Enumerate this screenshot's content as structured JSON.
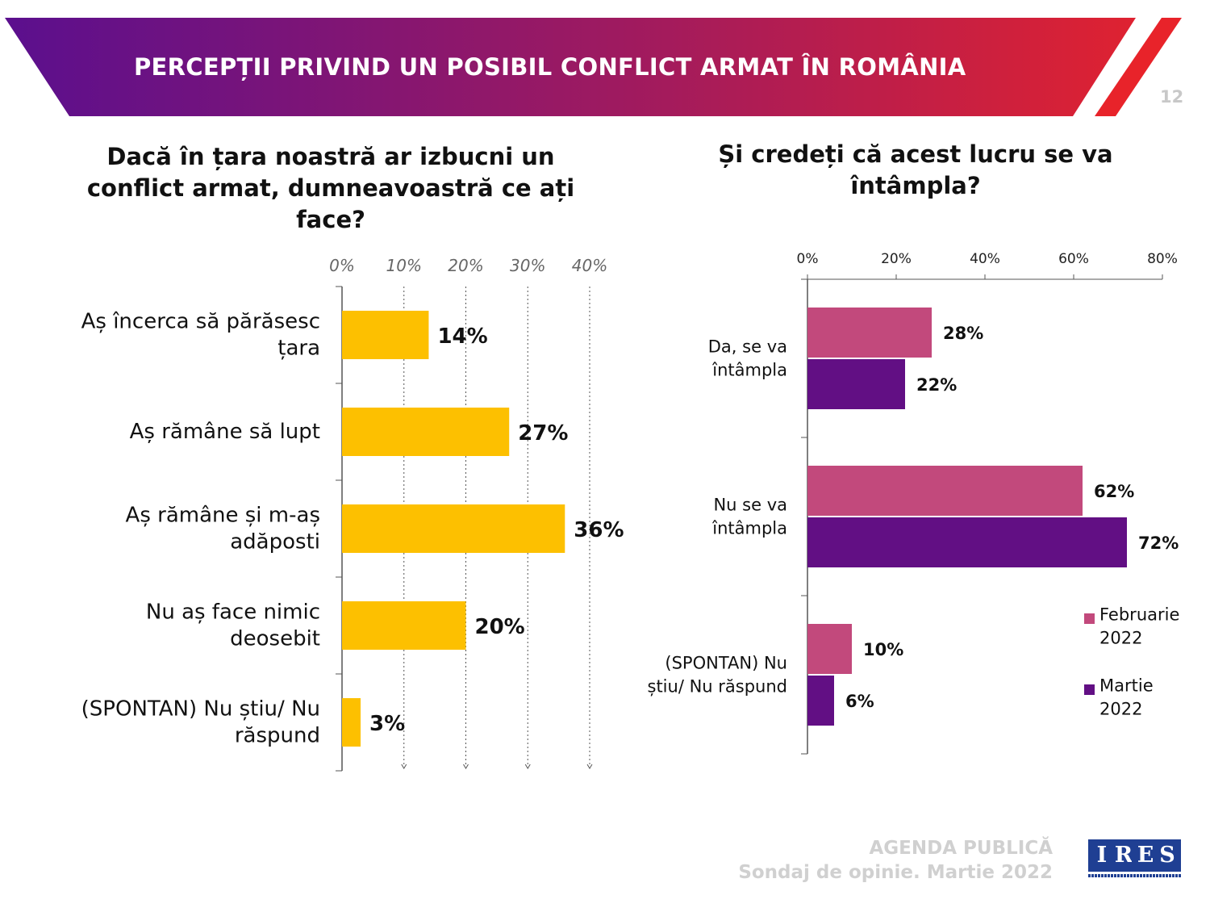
{
  "header": {
    "title": "PERCEPȚII PRIVIND UN POSIBIL CONFLICT ARMAT ÎN ROMÂNIA",
    "page_number": "12"
  },
  "colors": {
    "banner_start": "#5b0f8e",
    "banner_end": "#e8232a",
    "bar_yellow": "#fdc000",
    "series_feb": "#c2497c",
    "series_mar": "#620f84"
  },
  "footer": {
    "line1": "AGENDA PUBLICĂ",
    "line2": "Sondaj de opinie. Martie 2022"
  },
  "logo": {
    "letters": [
      "I",
      "R",
      "E",
      "S"
    ]
  },
  "chart_data": [
    {
      "type": "bar",
      "orientation": "horizontal",
      "title": "Dacă în țara noastră ar izbucni un conflict armat, dumneavoastră ce ați face?",
      "categories": [
        [
          "Aș încerca să părăsesc",
          "țara"
        ],
        [
          "Aș rămâne să lupt"
        ],
        [
          "Aș rămâne și m-aș",
          "adăposti"
        ],
        [
          "Nu aș face nimic",
          "deosebit"
        ],
        [
          "(SPONTAN) Nu știu/ Nu",
          "răspund"
        ]
      ],
      "values": [
        14,
        27,
        36,
        20,
        3
      ],
      "value_labels": [
        "14%",
        "27%",
        "36%",
        "20%",
        "3%"
      ],
      "xlim": [
        0,
        40
      ],
      "xticks": [
        0,
        10,
        20,
        30,
        40
      ],
      "xtick_labels": [
        "0%",
        "10%",
        "20%",
        "30%",
        "40%"
      ],
      "grid": true
    },
    {
      "type": "bar",
      "orientation": "horizontal",
      "title": "Și credeți că acest lucru se va întâmpla?",
      "categories": [
        [
          "Da, se va",
          "întâmpla"
        ],
        [
          "Nu se va",
          "întâmpla"
        ],
        [
          "(SPONTAN) Nu",
          "știu/ Nu răspund"
        ]
      ],
      "series": [
        {
          "name": "Februarie 2022",
          "legend_lines": [
            "Februarie",
            "2022"
          ],
          "values": [
            28,
            62,
            10
          ],
          "value_labels": [
            "28%",
            "62%",
            "10%"
          ]
        },
        {
          "name": "Martie 2022",
          "legend_lines": [
            "Martie",
            "2022"
          ],
          "values": [
            22,
            72,
            6
          ],
          "value_labels": [
            "22%",
            "72%",
            "6%"
          ]
        }
      ],
      "xlim": [
        0,
        80
      ],
      "xticks": [
        0,
        20,
        40,
        60,
        80
      ],
      "xtick_labels": [
        "0%",
        "20%",
        "40%",
        "60%",
        "80%"
      ],
      "grid": false,
      "legend": "right"
    }
  ]
}
